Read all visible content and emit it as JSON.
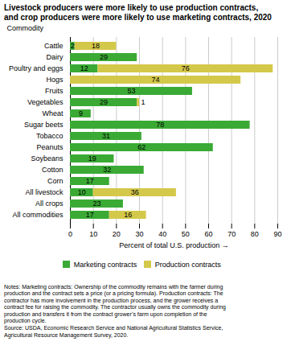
{
  "chart_data": {
    "type": "bar",
    "orientation": "horizontal",
    "stacked": true,
    "title": "Livestock producers were more likely to use production contracts,",
    "subtitle": "and crop producers were more likely to use marketing contracts, 2020",
    "xlabel": "Percent of total U.S. production",
    "ylabel": "Commodity",
    "categories": [
      "Cattle",
      "Dairy",
      "Poultry and eggs",
      "Hogs",
      "Fruits",
      "Vegetables",
      "Wheat",
      "Sugar beets",
      "Tobacco",
      "Peanuts",
      "Soybeans",
      "Cotton",
      "Corn",
      "All livestock",
      "All crops",
      "All commodities"
    ],
    "series": [
      {
        "name": "Marketing contracts",
        "color": "#3aaa35",
        "values": [
          2,
          29,
          12,
          0,
          53,
          29,
          9,
          78,
          31,
          62,
          19,
          32,
          17,
          10,
          23,
          17
        ]
      },
      {
        "name": "Production contracts",
        "color": "#d4c84a",
        "values": [
          18,
          0,
          76,
          74,
          0,
          1,
          0,
          0,
          0,
          0,
          0,
          0,
          0,
          36,
          0,
          16
        ]
      }
    ],
    "xlim": [
      0,
      90
    ],
    "xticks": [
      0,
      10,
      20,
      30,
      40,
      50,
      60,
      70,
      80,
      90
    ],
    "grid": true,
    "legend": "bottom",
    "data_labels": true,
    "caption": "Notes: Marketing contracts: Ownership of the commodity remains with the farmer during\nproduction and the contract sets a price (or a pricing formula). Production contracts: The\ncontractor has more involvement in the production process, and the grower receives a\ncontract fee for raising the commodity. The contractor usually owns the commodity during\nproduction and transfers it from the contract grower’s farm upon completion of the\nproduction cycle.\nSource: USDA, Economic Research Service and National Agricultural Statistics Service,\nAgricultural Resource Management Survey, 2020."
  }
}
